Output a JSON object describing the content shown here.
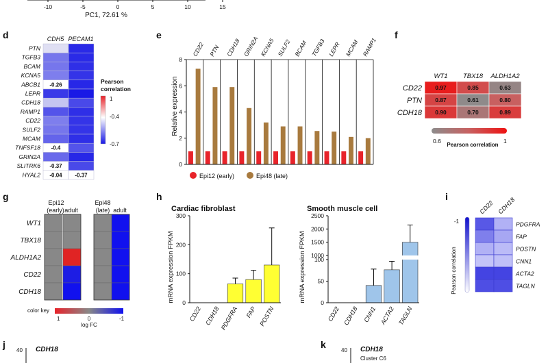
{
  "top_axis": {
    "ticks": [
      "-10",
      "-5",
      "0",
      "5",
      "10",
      "15"
    ],
    "label": "PC1, 72.61 %"
  },
  "panel_letters": [
    "d",
    "e",
    "f",
    "g",
    "h",
    "i",
    "j",
    "k"
  ],
  "panel_d": {
    "columns": [
      "CDH5",
      "PECAM1"
    ],
    "rows": [
      {
        "gene": "PTN",
        "values": [
          -0.05,
          -0.74
        ],
        "labels": [
          "",
          ""
        ]
      },
      {
        "gene": "TGFB3",
        "values": [
          -0.45,
          -0.74
        ],
        "labels": [
          "",
          ""
        ]
      },
      {
        "gene": "BCAM",
        "values": [
          -0.45,
          -0.72
        ],
        "labels": [
          "",
          ""
        ]
      },
      {
        "gene": "KCNA5",
        "values": [
          -0.42,
          -0.7
        ],
        "labels": [
          "",
          ""
        ]
      },
      {
        "gene": "ABCB1",
        "values": [
          -0.26,
          -0.75
        ],
        "labels": [
          "-0.26",
          ""
        ]
      },
      {
        "gene": "LEPR",
        "values": [
          -0.68,
          -0.82
        ],
        "labels": [
          "",
          ""
        ]
      },
      {
        "gene": "CDH18",
        "values": [
          -0.15,
          -0.62
        ],
        "labels": [
          "",
          ""
        ]
      },
      {
        "gene": "RAMP1",
        "values": [
          -0.58,
          -0.72
        ],
        "labels": [
          "",
          ""
        ]
      },
      {
        "gene": "CD22",
        "values": [
          -0.42,
          -0.7
        ],
        "labels": [
          "",
          ""
        ]
      },
      {
        "gene": "SULF2",
        "values": [
          -0.45,
          -0.7
        ],
        "labels": [
          "",
          ""
        ]
      },
      {
        "gene": "MCAM",
        "values": [
          -0.52,
          -0.72
        ],
        "labels": [
          "",
          ""
        ]
      },
      {
        "gene": "TNFSF18",
        "values": [
          -0.4,
          -0.58
        ],
        "labels": [
          "-0.4",
          ""
        ]
      },
      {
        "gene": "GRIN2A",
        "values": [
          -0.5,
          -0.75
        ],
        "labels": [
          "",
          ""
        ]
      },
      {
        "gene": "SLITRK6",
        "values": [
          -0.37,
          -0.62
        ],
        "labels": [
          "-0.37",
          ""
        ]
      },
      {
        "gene": "HYAL2",
        "values": [
          -0.04,
          -0.37
        ],
        "labels": [
          "-0.04",
          "-0.37"
        ]
      }
    ],
    "colorbar": {
      "title_line1": "Pearson",
      "title_line2": "correlation",
      "ticks": [
        "1",
        "-0.4",
        "-0.7"
      ]
    }
  },
  "chart_data": [
    {
      "panel": "e",
      "type": "bar",
      "categories": [
        "CD22",
        "PTN",
        "CDH18",
        "GRIN2A",
        "KCNA5",
        "SULF2",
        "BCAM",
        "TGFB3",
        "LEPR",
        "MCAM",
        "RAMP1"
      ],
      "series": [
        {
          "name": "Epi12 (early)",
          "color": "#e8232a",
          "values": [
            1,
            1,
            1,
            1,
            1,
            1,
            1,
            1,
            1,
            1,
            1
          ]
        },
        {
          "name": "Epi48 (late)",
          "color": "#a87a3e",
          "values": [
            7.3,
            5.9,
            5.9,
            4.3,
            3.2,
            2.9,
            2.9,
            2.55,
            2.5,
            2.1,
            2.0
          ]
        }
      ],
      "ylabel": "Relative expression",
      "yticks": [
        "0",
        "2",
        "4",
        "6",
        "8"
      ],
      "ylim": [
        0,
        8
      ]
    },
    {
      "panel": "h-left",
      "type": "bar",
      "title": "Cardiac fibroblast",
      "categories": [
        "CD22",
        "CDH18",
        "PDGFRA",
        "FAP",
        "POSTN"
      ],
      "values": [
        0,
        0,
        65,
        80,
        130
      ],
      "errors": [
        0,
        0,
        20,
        32,
        128
      ],
      "color": "#ffff33",
      "ylabel": "mRNA expression FPKM",
      "yticks": [
        "0",
        "100",
        "200",
        "300"
      ],
      "ylim": [
        0,
        300
      ]
    },
    {
      "panel": "h-right",
      "type": "bar",
      "title": "Smooth muscle cell",
      "categories": [
        "CD22",
        "CDH18",
        "CNN1",
        "ACTA2",
        "TAGLN"
      ],
      "values": [
        0,
        0,
        40,
        460,
        1500
      ],
      "errors": [
        0,
        0,
        38,
        320,
        650
      ],
      "color": "#9fc5ea",
      "ylabel": "mRNA expression FPKM",
      "yticks": [
        "0",
        "50",
        "100",
        "1000",
        "1500",
        "2000",
        "2500"
      ],
      "ylim": [
        0,
        2500
      ]
    }
  ],
  "panel_e": {
    "legend": [
      {
        "label": "Epi12 (early)",
        "color": "#e8232a"
      },
      {
        "label": "Epi48 (late)",
        "color": "#a87a3e"
      }
    ]
  },
  "panel_f": {
    "columns": [
      "WT1",
      "TBX18",
      "ALDH1A2"
    ],
    "rows": [
      {
        "gene": "CD22",
        "values": [
          0.97,
          0.85,
          0.63
        ],
        "labels": [
          "0.97",
          "0.85",
          "0.63"
        ]
      },
      {
        "gene": "PTN",
        "values": [
          0.87,
          0.61,
          0.8
        ],
        "labels": [
          "0.87",
          "0.61",
          "0.80"
        ]
      },
      {
        "gene": "CDH18",
        "values": [
          0.9,
          0.7,
          0.89
        ],
        "labels": [
          "0.90",
          "0.70",
          "0.89"
        ]
      }
    ],
    "colorbar": {
      "min_label": "0.6",
      "max_label": "1",
      "title": "Pearson correlation"
    }
  },
  "panel_g": {
    "group_headers": [
      "Epi12",
      "(early)",
      "adult",
      "Epi48",
      "(late)",
      "adult"
    ],
    "rows": [
      {
        "gene": "WT1",
        "adult_early": 0.0,
        "adult_late": -1.0
      },
      {
        "gene": "TBX18",
        "adult_early": 0.0,
        "adult_late": -1.0
      },
      {
        "gene": "ALDH1A2",
        "adult_early": 1.0,
        "adult_late": -1.0
      },
      {
        "gene": "CD22",
        "adult_early": -0.9,
        "adult_late": -1.0
      },
      {
        "gene": "CDH18",
        "adult_early": -1.0,
        "adult_late": -1.0
      }
    ],
    "colorbar": {
      "title": "color key",
      "ticks": [
        "1",
        "0",
        "-1"
      ],
      "label": "log FC"
    }
  },
  "panel_i": {
    "columns": [
      "CD22",
      "CDH18"
    ],
    "rows": [
      {
        "gene": "PDGFRA",
        "values": [
          -0.75,
          -0.3
        ]
      },
      {
        "gene": "FAP",
        "values": [
          -0.55,
          -0.35
        ]
      },
      {
        "gene": "POSTN",
        "values": [
          -0.3,
          -0.25
        ]
      },
      {
        "gene": "CNN1",
        "values": [
          -0.2,
          -0.22
        ]
      },
      {
        "gene": "ACTA2",
        "values": [
          -0.85,
          -0.85
        ]
      },
      {
        "gene": "TAGLN",
        "values": [
          -0.8,
          -0.8
        ]
      }
    ],
    "colorbar": {
      "top_label": "-1",
      "title": "Pearson correlation"
    }
  },
  "panel_j": {
    "title": "CDH18",
    "ytick": "40"
  },
  "panel_k": {
    "title": "CDH18",
    "subtitle": "Cluster C6",
    "ytick": "40"
  }
}
